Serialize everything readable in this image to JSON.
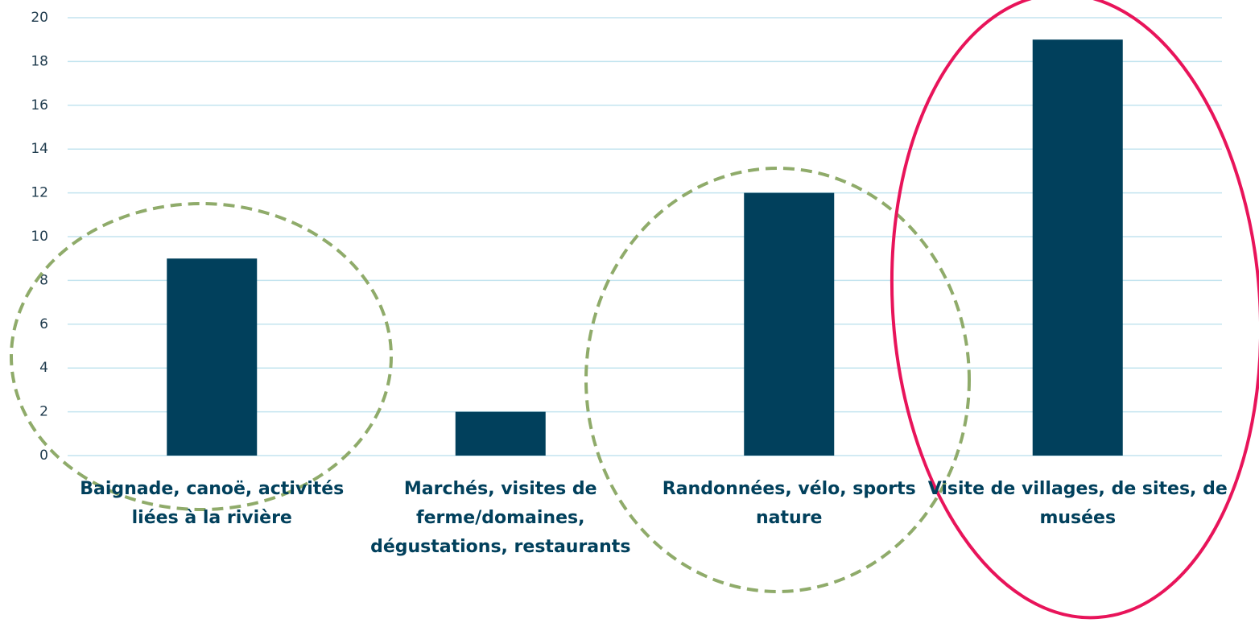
{
  "chart_data": {
    "type": "bar",
    "categories": [
      "Baignade, canoë, activités liées à la rivière",
      "Marchés, visites de ferme/domaines, dégustations, restaurants",
      "Randonnées, vélo, sports nature",
      "Visite de villages, de sites, de musées"
    ],
    "values": [
      9,
      2,
      12,
      19
    ],
    "color": "#01405c",
    "ylim": [
      0,
      20
    ],
    "yticks": [
      0,
      2,
      4,
      6,
      8,
      10,
      12,
      14,
      16,
      18,
      20
    ],
    "grid": true
  }
}
